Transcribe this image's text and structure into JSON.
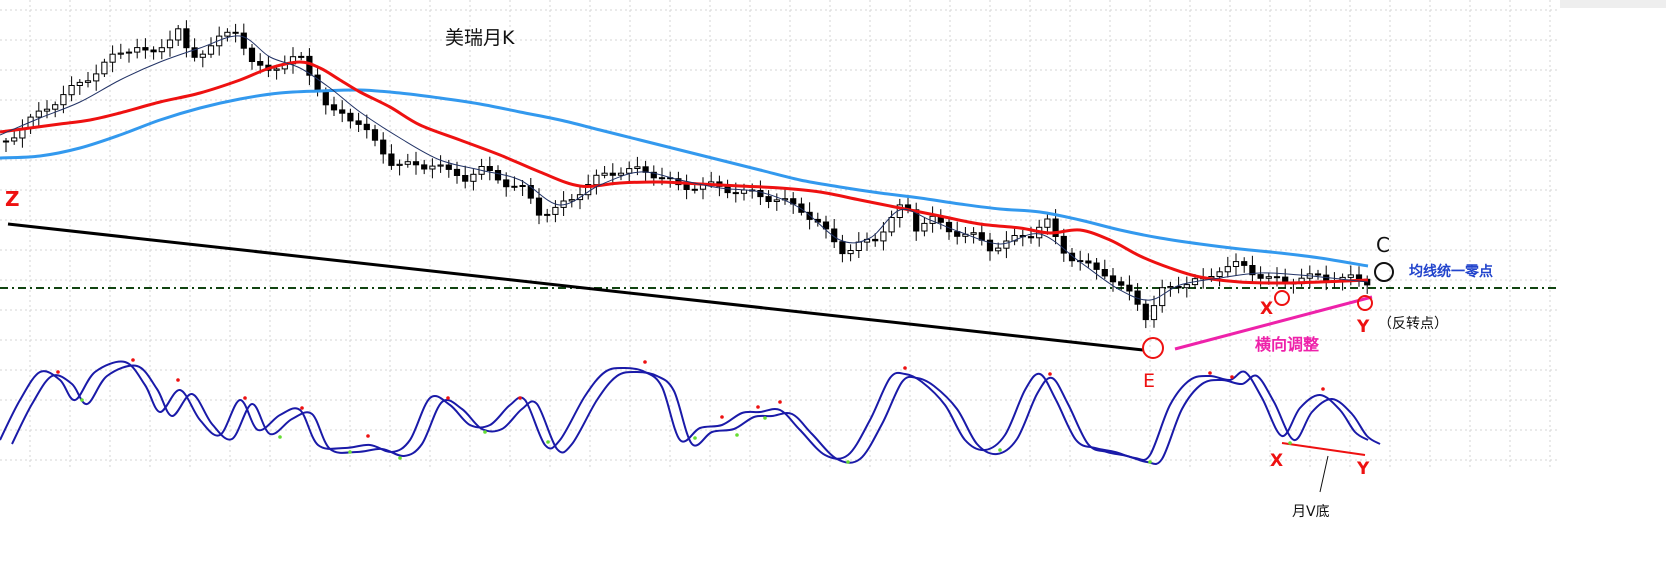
{
  "chart_data": {
    "type": "line",
    "title": "美瑞月K",
    "grid": true,
    "colors": {
      "ma_long": "#3399ee",
      "ma_mid": "#ee1111",
      "ma_short": "#223366",
      "candle": "#000000",
      "trendline": "#000000",
      "zero_line": "#114411",
      "pink_line": "#ee22aa",
      "annotation_red": "#ee1111",
      "annotation_blue": "#2244cc",
      "osc": "#1a1aa8",
      "dot_red": "#ee1111",
      "dot_green": "#66dd33"
    },
    "annotations": {
      "z": "Z",
      "c": "C",
      "e": "E",
      "x_price": "X",
      "y_price": "Y",
      "x_osc": "X",
      "y_osc": "Y",
      "zero_point": "均线统一零点",
      "reversal": "（反转点）",
      "sideways": "横向调整",
      "v_bottom": "月V底"
    }
  }
}
